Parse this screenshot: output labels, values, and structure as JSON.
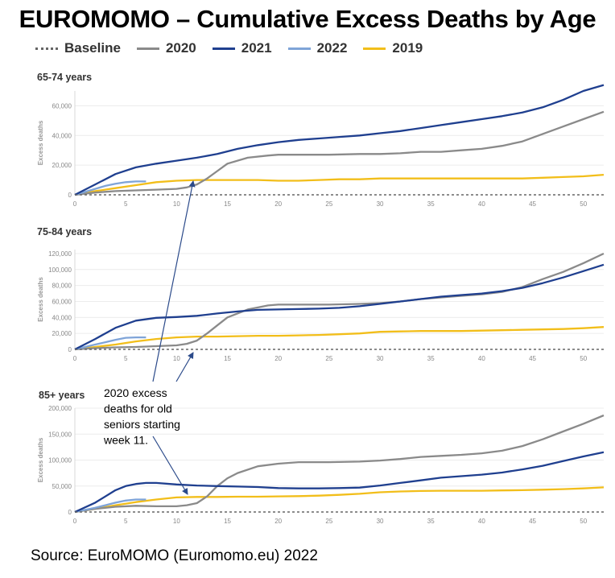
{
  "title": "EUROMOMO – Cumulative Excess Deaths by Age",
  "legend": [
    {
      "label": "Baseline",
      "color": "#666666",
      "dashed": true
    },
    {
      "label": "2020",
      "color": "#8a8a8a",
      "dashed": false
    },
    {
      "label": "2021",
      "color": "#1f3f8f",
      "dashed": false
    },
    {
      "label": "2022",
      "color": "#7fa4d8",
      "dashed": false
    },
    {
      "label": "2019",
      "color": "#f2be1a",
      "dashed": false
    }
  ],
  "annotation": [
    "2020 excess",
    "deaths for old",
    "seniors starting",
    "week 11."
  ],
  "source": "Source: EuroMOMO (Euromomo.eu) 2022",
  "chart_data": [
    {
      "type": "line",
      "title": "65-74 years",
      "ylabel": "Excess deaths",
      "xlim": [
        0,
        52
      ],
      "ylim": [
        0,
        70000
      ],
      "xticks": [
        0,
        5,
        10,
        15,
        20,
        25,
        30,
        35,
        40,
        45,
        50
      ],
      "yticks": [
        0,
        20000,
        40000,
        60000
      ],
      "ytick_labels": [
        "0",
        "20,000",
        "40,000",
        "60,000"
      ],
      "series": [
        {
          "name": "Baseline",
          "x": [
            0,
            52
          ],
          "y": [
            0,
            0
          ]
        },
        {
          "name": "2020",
          "x": [
            0,
            2,
            4,
            6,
            8,
            10,
            11,
            12,
            13,
            14,
            15,
            17,
            19,
            20,
            22,
            25,
            28,
            30,
            32,
            34,
            36,
            38,
            40,
            42,
            44,
            46,
            48,
            50,
            52
          ],
          "y": [
            0,
            1500,
            2500,
            3000,
            3500,
            4000,
            5000,
            7000,
            11000,
            16000,
            21000,
            25000,
            26500,
            27000,
            27000,
            27000,
            27500,
            27500,
            28000,
            29000,
            29000,
            30000,
            31000,
            33000,
            36000,
            41000,
            46000,
            51000,
            56000
          ]
        },
        {
          "name": "2021",
          "x": [
            0,
            2,
            4,
            6,
            8,
            10,
            12,
            14,
            16,
            18,
            20,
            22,
            24,
            26,
            28,
            30,
            32,
            34,
            36,
            38,
            40,
            42,
            44,
            46,
            48,
            50,
            52
          ],
          "y": [
            0,
            7000,
            14000,
            18500,
            21000,
            23000,
            25000,
            27500,
            31000,
            33500,
            35500,
            37000,
            38000,
            39000,
            40000,
            41500,
            43000,
            45000,
            47000,
            49000,
            51000,
            53000,
            55500,
            59000,
            64000,
            70000,
            74000
          ]
        },
        {
          "name": "2022",
          "x": [
            0,
            1,
            2,
            3,
            4,
            5,
            6,
            7
          ],
          "y": [
            0,
            2000,
            4000,
            6000,
            7500,
            8500,
            9000,
            9000
          ]
        },
        {
          "name": "2019",
          "x": [
            0,
            2,
            4,
            6,
            8,
            10,
            12,
            14,
            16,
            18,
            20,
            22,
            24,
            26,
            28,
            30,
            32,
            34,
            36,
            38,
            40,
            42,
            44,
            46,
            48,
            50,
            52
          ],
          "y": [
            0,
            2500,
            4500,
            6500,
            8500,
            9500,
            10000,
            10000,
            10000,
            10000,
            9500,
            9500,
            10000,
            10500,
            10500,
            11000,
            11000,
            11000,
            11000,
            11000,
            11000,
            11000,
            11000,
            11500,
            12000,
            12500,
            13500
          ]
        }
      ]
    },
    {
      "type": "line",
      "title": "75-84 years",
      "ylabel": "Excess deaths",
      "xlim": [
        0,
        52
      ],
      "ylim": [
        0,
        125000
      ],
      "xticks": [
        0,
        5,
        10,
        15,
        20,
        25,
        30,
        35,
        40,
        45,
        50
      ],
      "yticks": [
        0,
        20000,
        40000,
        60000,
        80000,
        100000,
        120000
      ],
      "ytick_labels": [
        "0",
        "20,000",
        "40,000",
        "60,000",
        "80,000",
        "100,000",
        "120,000"
      ],
      "series": [
        {
          "name": "Baseline",
          "x": [
            0,
            52
          ],
          "y": [
            0,
            0
          ]
        },
        {
          "name": "2020",
          "x": [
            0,
            2,
            4,
            6,
            8,
            10,
            11,
            12,
            13,
            14,
            15,
            17,
            19,
            20,
            22,
            25,
            28,
            30,
            32,
            34,
            36,
            38,
            40,
            42,
            44,
            46,
            48,
            50,
            52
          ],
          "y": [
            0,
            1500,
            2500,
            3000,
            4000,
            5000,
            7000,
            11000,
            20000,
            30000,
            40000,
            50000,
            55000,
            56000,
            56000,
            56000,
            57000,
            58000,
            60000,
            63000,
            65000,
            67000,
            69000,
            72000,
            78000,
            88000,
            97000,
            108000,
            120000
          ]
        },
        {
          "name": "2021",
          "x": [
            0,
            2,
            4,
            6,
            8,
            10,
            12,
            14,
            16,
            18,
            20,
            22,
            24,
            26,
            28,
            30,
            32,
            34,
            36,
            38,
            40,
            42,
            44,
            46,
            48,
            50,
            52
          ],
          "y": [
            0,
            13000,
            27000,
            36000,
            39500,
            40500,
            42000,
            45000,
            47500,
            49500,
            50000,
            50500,
            51000,
            52000,
            54000,
            57000,
            60000,
            63000,
            66000,
            68000,
            70000,
            73000,
            77000,
            83000,
            90000,
            98000,
            106000
          ]
        },
        {
          "name": "2022",
          "x": [
            0,
            1,
            2,
            3,
            4,
            5,
            6,
            7
          ],
          "y": [
            0,
            3000,
            6000,
            9000,
            12000,
            14500,
            15000,
            15000
          ]
        },
        {
          "name": "2019",
          "x": [
            0,
            2,
            4,
            6,
            8,
            10,
            12,
            14,
            16,
            18,
            20,
            22,
            24,
            26,
            28,
            30,
            32,
            34,
            36,
            38,
            40,
            42,
            44,
            46,
            48,
            50,
            52
          ],
          "y": [
            0,
            3000,
            6000,
            10000,
            13000,
            15000,
            16000,
            16000,
            16500,
            17000,
            17000,
            17500,
            18000,
            19000,
            20000,
            22000,
            22500,
            23000,
            23000,
            23000,
            23500,
            24000,
            24500,
            25000,
            25500,
            26500,
            28000
          ]
        }
      ]
    },
    {
      "type": "line",
      "title": "85+ years",
      "ylabel": "Excess deaths",
      "xlim": [
        0,
        52
      ],
      "ylim": [
        0,
        200000
      ],
      "xticks": [
        0,
        5,
        10,
        15,
        20,
        25,
        30,
        35,
        40,
        45,
        50
      ],
      "yticks": [
        0,
        50000,
        100000,
        150000,
        200000
      ],
      "ytick_labels": [
        "0",
        "50,000",
        "100,000",
        "150,000",
        "200,000"
      ],
      "series": [
        {
          "name": "Baseline",
          "x": [
            0,
            52
          ],
          "y": [
            0,
            0
          ]
        },
        {
          "name": "2020",
          "x": [
            0,
            2,
            4,
            6,
            8,
            10,
            11,
            12,
            13,
            14,
            15,
            16,
            18,
            20,
            22,
            25,
            28,
            30,
            32,
            34,
            36,
            38,
            40,
            42,
            44,
            46,
            48,
            50,
            52
          ],
          "y": [
            0,
            6000,
            10000,
            12000,
            11000,
            11000,
            13000,
            17000,
            30000,
            50000,
            65000,
            75000,
            88000,
            93000,
            96000,
            96000,
            97000,
            99000,
            102000,
            106000,
            108000,
            110000,
            113000,
            118000,
            127000,
            140000,
            155000,
            170000,
            186000
          ]
        },
        {
          "name": "2021",
          "x": [
            0,
            2,
            4,
            5,
            6,
            7,
            8,
            10,
            12,
            14,
            16,
            18,
            20,
            22,
            24,
            26,
            28,
            30,
            32,
            34,
            36,
            38,
            40,
            42,
            44,
            46,
            48,
            50,
            52
          ],
          "y": [
            0,
            18000,
            42000,
            50000,
            54000,
            56000,
            56000,
            53000,
            51000,
            50000,
            49000,
            48000,
            46000,
            45500,
            45500,
            46000,
            47000,
            51000,
            56000,
            61000,
            66000,
            69000,
            72000,
            76000,
            82000,
            89000,
            98000,
            107000,
            115000
          ]
        },
        {
          "name": "2022",
          "x": [
            0,
            1,
            2,
            3,
            4,
            5,
            6,
            7
          ],
          "y": [
            0,
            4000,
            8000,
            13000,
            18000,
            22000,
            24000,
            24000
          ]
        },
        {
          "name": "2019",
          "x": [
            0,
            2,
            4,
            6,
            8,
            10,
            12,
            14,
            16,
            18,
            20,
            22,
            24,
            26,
            28,
            30,
            32,
            34,
            36,
            38,
            40,
            42,
            44,
            46,
            48,
            50,
            52
          ],
          "y": [
            0,
            6000,
            13000,
            19000,
            24000,
            28000,
            29000,
            29000,
            29500,
            29500,
            30000,
            30500,
            31500,
            33000,
            35000,
            38000,
            39500,
            40500,
            41000,
            41000,
            41000,
            41500,
            42000,
            43000,
            44000,
            45500,
            47500
          ]
        }
      ]
    }
  ]
}
